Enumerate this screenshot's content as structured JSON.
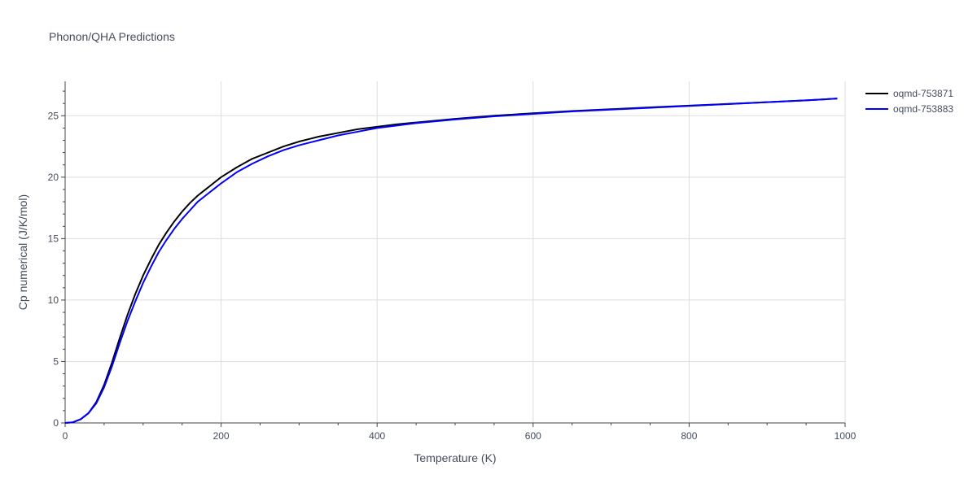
{
  "chart_data": {
    "type": "line",
    "title": "Phonon/QHA Predictions",
    "xlabel": "Temperature (K)",
    "ylabel": "Cp numerical (J/K/mol)",
    "xlim": [
      0,
      1000
    ],
    "ylim": [
      0,
      27.8
    ],
    "xticks": [
      0,
      200,
      400,
      600,
      800,
      1000
    ],
    "xtick_labels": [
      "0",
      "200",
      "400",
      "600",
      "800",
      "1000"
    ],
    "yticks": [
      0,
      5,
      10,
      15,
      20,
      25
    ],
    "ytick_labels": [
      "0",
      "5",
      "10",
      "15",
      "20",
      "25"
    ],
    "grid": true,
    "legend_position": "top-right",
    "series": [
      {
        "name": "oqmd-753871",
        "color": "#000000",
        "x": [
          0,
          10,
          20,
          30,
          40,
          50,
          60,
          70,
          80,
          90,
          100,
          110,
          120,
          130,
          140,
          150,
          160,
          170,
          180,
          190,
          200,
          220,
          240,
          260,
          280,
          300,
          325,
          350,
          375,
          400,
          425,
          450,
          500,
          550,
          600,
          650,
          700,
          750,
          800,
          850,
          900,
          950,
          990
        ],
        "y": [
          0,
          0.05,
          0.3,
          0.8,
          1.7,
          3.1,
          4.9,
          6.9,
          8.8,
          10.5,
          12.0,
          13.3,
          14.5,
          15.5,
          16.4,
          17.2,
          17.9,
          18.5,
          19.0,
          19.5,
          20.0,
          20.8,
          21.5,
          22.0,
          22.5,
          22.9,
          23.3,
          23.6,
          23.9,
          24.1,
          24.3,
          24.45,
          24.75,
          25.0,
          25.2,
          25.38,
          25.53,
          25.68,
          25.82,
          25.96,
          26.1,
          26.25,
          26.4
        ]
      },
      {
        "name": "oqmd-753883",
        "color": "#0000ff",
        "x": [
          0,
          10,
          20,
          30,
          40,
          50,
          60,
          70,
          80,
          90,
          100,
          110,
          120,
          130,
          140,
          150,
          160,
          170,
          180,
          190,
          200,
          220,
          240,
          260,
          280,
          300,
          325,
          350,
          375,
          400,
          425,
          450,
          500,
          550,
          600,
          650,
          700,
          750,
          800,
          850,
          900,
          950,
          990
        ],
        "y": [
          0,
          0.05,
          0.3,
          0.8,
          1.6,
          2.9,
          4.6,
          6.5,
          8.3,
          9.9,
          11.4,
          12.7,
          13.9,
          14.9,
          15.8,
          16.6,
          17.3,
          18.0,
          18.5,
          19.0,
          19.5,
          20.4,
          21.1,
          21.7,
          22.2,
          22.6,
          23.0,
          23.4,
          23.7,
          24.0,
          24.2,
          24.4,
          24.7,
          24.95,
          25.15,
          25.35,
          25.5,
          25.65,
          25.8,
          25.95,
          26.1,
          26.25,
          26.4
        ]
      }
    ]
  }
}
